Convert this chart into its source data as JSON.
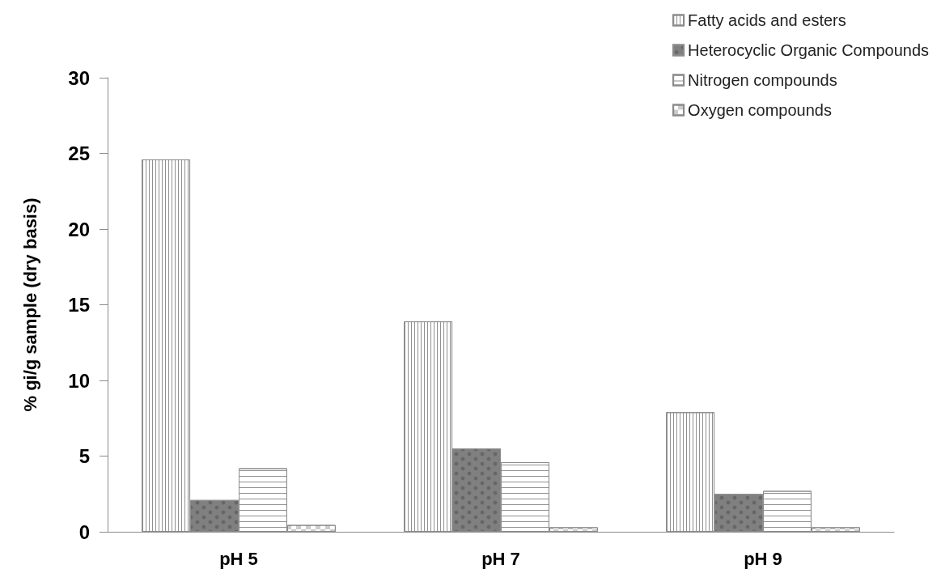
{
  "chart_data": {
    "type": "bar",
    "ylabel": "% gi/g sample (dry basis)",
    "categories": [
      "pH 5",
      "pH 7",
      "pH 9"
    ],
    "series": [
      {
        "name": "Fatty acids and esters",
        "color": "#ffffff",
        "values": [
          24.6,
          13.9,
          7.9
        ]
      },
      {
        "name": "Heterocyclic Organic Compounds",
        "color": "#808080",
        "values": [
          2.1,
          5.5,
          2.5
        ]
      },
      {
        "name": "Nitrogen compounds",
        "color": "#ffffff",
        "values": [
          4.2,
          4.6,
          2.7
        ]
      },
      {
        "name": "Oxygen compounds",
        "color": "#ffffff",
        "values": [
          0.45,
          0.3,
          0.3
        ]
      }
    ],
    "ylim": [
      0,
      30
    ],
    "yticks": [
      0,
      5,
      10,
      15,
      20,
      25,
      30
    ],
    "grid": false,
    "legend": "top right"
  }
}
